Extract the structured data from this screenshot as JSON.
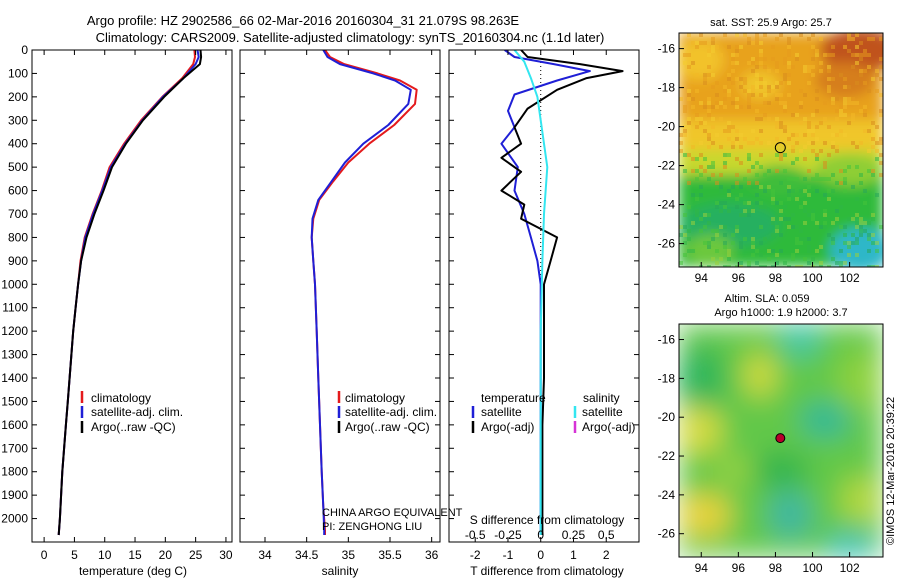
{
  "header": {
    "title_line1": "Argo profile: HZ 2902586_66 02-Mar-2016 20160304_31 21.079S 98.263E",
    "title_line2": "Climatology: CARS2009. Satellite-adjusted climatology: synTS_20160304.nc (1.1d later)"
  },
  "colors": {
    "climatology": "#e41a1c",
    "satellite_adj": "#1f1fd6",
    "argo": "#000000",
    "salinity_satellite": "#33e6f0",
    "salinity_argo": "#d633d6",
    "marker_fill": "#b8002a"
  },
  "chart_data": [
    {
      "id": "temperature",
      "type": "line",
      "xlabel": "temperature (deg C)",
      "ylabel": "",
      "xlim": [
        -2,
        31
      ],
      "ylim": [
        2100,
        0
      ],
      "xticks": [
        0,
        5,
        10,
        15,
        20,
        25,
        30
      ],
      "yticks": [
        0,
        100,
        200,
        300,
        400,
        500,
        600,
        700,
        800,
        900,
        1000,
        1100,
        1200,
        1300,
        1400,
        1500,
        1600,
        1700,
        1800,
        1900,
        2000
      ],
      "legend": [
        "climatology",
        "satellite-adj. clim.",
        "Argo(..raw -QC)"
      ],
      "legend_position": "lower-left",
      "series": [
        {
          "name": "climatology",
          "color_key": "climatology",
          "x": [
            24.8,
            24.9,
            24.6,
            22.8,
            19.5,
            16.0,
            13.2,
            10.8,
            9.5,
            8.0,
            6.7,
            6.0,
            5.6,
            5.2,
            4.8,
            4.5,
            4.2,
            3.9,
            3.6,
            3.3,
            3.0,
            2.8,
            2.6,
            2.4
          ],
          "y": [
            0,
            30,
            60,
            120,
            200,
            300,
            400,
            500,
            600,
            700,
            800,
            900,
            1000,
            1100,
            1200,
            1300,
            1400,
            1500,
            1600,
            1700,
            1800,
            1900,
            2000,
            2070
          ]
        },
        {
          "name": "satellite-adj. clim.",
          "color_key": "satellite_adj",
          "x": [
            25.3,
            25.5,
            25.0,
            23.0,
            19.6,
            16.2,
            13.4,
            11.0,
            9.6,
            8.1,
            6.8,
            6.1,
            5.6,
            5.2,
            4.8,
            4.5,
            4.2,
            3.9,
            3.6,
            3.3,
            3.0,
            2.8,
            2.6,
            2.4
          ],
          "y": [
            0,
            30,
            60,
            120,
            200,
            300,
            400,
            500,
            600,
            700,
            800,
            900,
            1000,
            1100,
            1200,
            1300,
            1400,
            1500,
            1600,
            1700,
            1800,
            1900,
            2000,
            2070
          ]
        },
        {
          "name": "Argo(..raw -QC)",
          "color_key": "argo",
          "x": [
            25.8,
            25.9,
            25.7,
            23.0,
            19.8,
            16.3,
            13.5,
            11.2,
            9.8,
            8.3,
            7.0,
            6.1,
            5.6,
            5.2,
            4.8,
            4.5,
            4.2,
            3.9,
            3.6,
            3.3,
            3.0,
            2.8,
            2.6,
            2.4
          ],
          "y": [
            0,
            30,
            60,
            120,
            200,
            300,
            400,
            500,
            600,
            700,
            800,
            900,
            1000,
            1100,
            1200,
            1300,
            1400,
            1500,
            1600,
            1700,
            1800,
            1900,
            2000,
            2070
          ]
        }
      ]
    },
    {
      "id": "salinity",
      "type": "line",
      "xlabel": "salinity",
      "ylabel": "",
      "xlim": [
        33.7,
        36.1
      ],
      "ylim": [
        2100,
        0
      ],
      "xticks": [
        34,
        34.5,
        35,
        35.5,
        36
      ],
      "legend": [
        "climatology",
        "satellite-adj. clim.",
        "Argo(..raw -QC)"
      ],
      "legend_position": "lower-left",
      "annotation_line1": "CHINA ARGO EQUIVALENT",
      "annotation_line2": "PI: ZENGHONG LIU",
      "series": [
        {
          "name": "climatology",
          "color_key": "climatology",
          "x": [
            34.72,
            34.78,
            34.95,
            35.35,
            35.62,
            35.82,
            35.8,
            35.55,
            35.25,
            35.0,
            34.82,
            34.65,
            34.58,
            34.56,
            34.58,
            34.6,
            34.62,
            34.64,
            34.66,
            34.68,
            34.7,
            34.72,
            34.72
          ],
          "y": [
            0,
            30,
            60,
            100,
            130,
            170,
            230,
            320,
            400,
            480,
            560,
            640,
            720,
            800,
            900,
            1000,
            1200,
            1400,
            1600,
            1800,
            1950,
            2050,
            2070
          ]
        },
        {
          "name": "satellite-adj. clim.",
          "color_key": "satellite_adj",
          "x": [
            34.7,
            34.75,
            34.9,
            35.3,
            35.56,
            35.75,
            35.72,
            35.48,
            35.18,
            34.96,
            34.8,
            34.64,
            34.57,
            34.56,
            34.58,
            34.6,
            34.62,
            34.64,
            34.66,
            34.68,
            34.7,
            34.71,
            34.71
          ],
          "y": [
            0,
            30,
            60,
            100,
            130,
            170,
            230,
            320,
            400,
            480,
            560,
            640,
            720,
            800,
            900,
            1000,
            1200,
            1400,
            1600,
            1800,
            1950,
            2050,
            2070
          ]
        }
      ]
    },
    {
      "id": "difference",
      "type": "line",
      "xlabel": "T difference from climatology",
      "top_axis_label": "S difference from climatology",
      "xlim": [
        -2.8,
        3.0
      ],
      "ylim": [
        2100,
        0
      ],
      "xticks": [
        -2,
        -1,
        0,
        1,
        2
      ],
      "top_ticks": [
        {
          "label": "-0.5",
          "value": -2
        },
        {
          "label": "-0.25",
          "value": -1
        },
        {
          "label": "0",
          "value": 0
        },
        {
          "label": "0.25",
          "value": 1
        },
        {
          "label": "0.5",
          "value": 2
        }
      ],
      "legend_left_title": "temperature",
      "legend_right_title": "salinity",
      "legend_left": [
        "satellite",
        "Argo(-adj)"
      ],
      "legend_right": [
        "satellite",
        "Argo(-adj)"
      ],
      "legend_position": "lower-center",
      "series": [
        {
          "name": "temperature satellite",
          "color_key": "satellite_adj",
          "x": [
            -1.1,
            -0.8,
            0.4,
            1.5,
            0.5,
            -0.8,
            -1.0,
            -0.8,
            -1.2,
            -0.7,
            -0.8,
            -0.5,
            -0.3,
            -0.1,
            0.0,
            0.0,
            0.0,
            0.0,
            0.0,
            0.0,
            0.0,
            0.0,
            0.0
          ],
          "y": [
            0,
            30,
            60,
            90,
            130,
            190,
            260,
            330,
            400,
            500,
            600,
            700,
            800,
            900,
            1000,
            1200,
            1400,
            1600,
            1800,
            1900,
            2000,
            2050,
            2070
          ]
        },
        {
          "name": "temperature Argo(-adj)",
          "color_key": "argo",
          "x": [
            -0.6,
            -0.4,
            1.2,
            2.5,
            1.4,
            0.5,
            -0.4,
            -0.8,
            -0.6,
            -1.2,
            -0.6,
            -1.2,
            -0.5,
            -0.6,
            0.5,
            0.3,
            0.1,
            0.1,
            0.1,
            0.05,
            0.05,
            0.05,
            0.05
          ],
          "y": [
            0,
            30,
            60,
            90,
            120,
            170,
            250,
            330,
            400,
            460,
            520,
            600,
            660,
            720,
            800,
            900,
            1000,
            1200,
            1400,
            1600,
            1800,
            2000,
            2070
          ]
        },
        {
          "name": "salinity satellite",
          "color_key": "salinity_satellite",
          "x": [
            -0.8,
            -0.5,
            -0.3,
            -0.1,
            0.0,
            0.1,
            0.2,
            0.1,
            0.05,
            0.0,
            0.0,
            0.0,
            0.0
          ],
          "y": [
            0,
            50,
            120,
            200,
            300,
            400,
            500,
            700,
            900,
            1200,
            1500,
            1800,
            2070
          ]
        }
      ]
    },
    {
      "id": "sst-map",
      "type": "heatmap",
      "title": "sat. SST: 25.9  Argo: 25.7",
      "xticks": [
        94,
        96,
        98,
        100,
        102
      ],
      "yticks": [
        -16,
        -18,
        -20,
        -22,
        -24,
        -26
      ],
      "xlim": [
        92.8,
        103.8
      ],
      "ylim": [
        -27.2,
        -15.2
      ],
      "marker": {
        "lon": 98.263,
        "lat": -21.079
      }
    },
    {
      "id": "sla-map",
      "type": "heatmap",
      "title_line1": "Altim. SLA: 0.059",
      "title_line2": "Argo h1000: 1.9 h2000: 3.7",
      "xticks": [
        94,
        96,
        98,
        100,
        102
      ],
      "yticks": [
        -16,
        -18,
        -20,
        -22,
        -24,
        -26
      ],
      "xlim": [
        92.8,
        103.8
      ],
      "ylim": [
        -27.2,
        -15.2
      ],
      "marker": {
        "lon": 98.263,
        "lat": -21.079
      }
    }
  ],
  "footer": {
    "side_stamp": "©IMOS 12-Mar-2016 20:39:22"
  }
}
